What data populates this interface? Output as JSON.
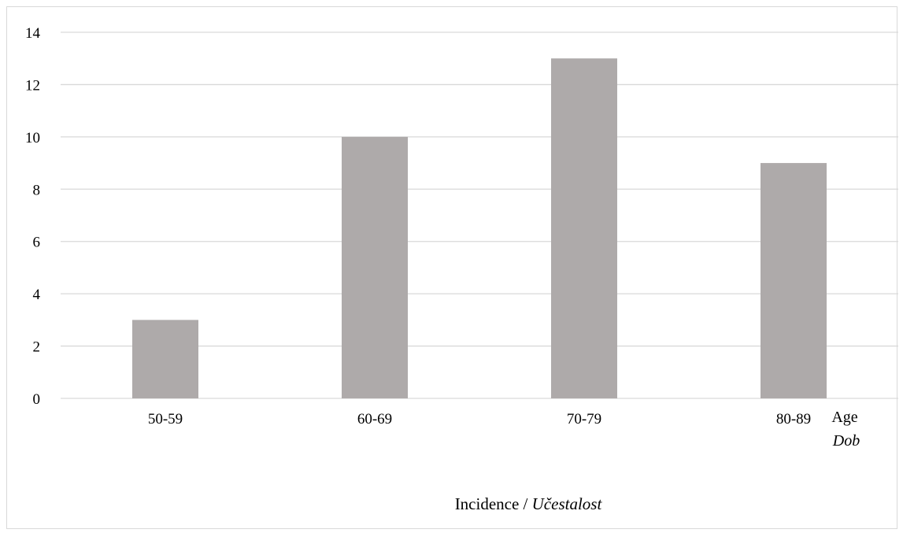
{
  "chart_data": {
    "type": "bar",
    "categories": [
      "50-59",
      "60-69",
      "70-79",
      "80-89"
    ],
    "values": [
      3,
      10,
      13,
      9
    ],
    "ylim": [
      0,
      14
    ],
    "yticks": [
      0,
      2,
      4,
      6,
      8,
      10,
      12,
      14
    ],
    "grid": true,
    "legend": "none",
    "bar_color": "#aeaaaa",
    "grid_color": "#d9d9d9",
    "xaxis_note": {
      "line1": "Age",
      "line2": "Dob"
    },
    "xlabel": {
      "main": "Incidence / ",
      "italic": "Učestalost"
    }
  }
}
